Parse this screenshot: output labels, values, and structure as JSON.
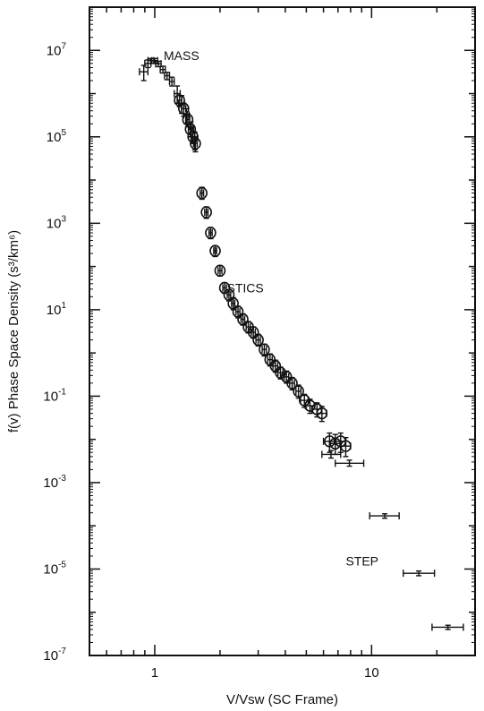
{
  "chart_data": {
    "type": "scatter",
    "xlabel": "V/Vsw (SC Frame)",
    "ylabel": "f(v) Phase Space Density (s³/km⁶)",
    "xscale": "log",
    "yscale": "log",
    "xlim": [
      0.5,
      30
    ],
    "ylim": [
      1e-07,
      100000000.0
    ],
    "grid": false,
    "x_ticks": [
      {
        "value": 1,
        "label": "1"
      },
      {
        "value": 10,
        "label": "10"
      }
    ],
    "y_ticks": [
      {
        "exp": 7,
        "base": "10",
        "sup": "7"
      },
      {
        "exp": 5,
        "base": "10",
        "sup": "5"
      },
      {
        "exp": 3,
        "base": "10",
        "sup": "3"
      },
      {
        "exp": 1,
        "base": "10",
        "sup": "1"
      },
      {
        "exp": -1,
        "base": "10",
        "sup": "-1"
      },
      {
        "exp": -3,
        "base": "10",
        "sup": "-3"
      },
      {
        "exp": -5,
        "base": "10",
        "sup": "-5"
      },
      {
        "exp": -7,
        "base": "10",
        "sup": "-7"
      }
    ],
    "annotations": [
      {
        "text": "MASS",
        "x": 1.1,
        "y": 6000000.0
      },
      {
        "text": "STICS",
        "x": 2.15,
        "y": 25
      },
      {
        "text": "STEP",
        "x": 7.6,
        "y": 1.2e-05
      }
    ],
    "series": [
      {
        "marker": "bar",
        "points": [
          {
            "x": 0.89,
            "y": 3200000.0,
            "xlo": 0.85,
            "xhi": 0.93,
            "ylo": 2000000.0,
            "yhi": 4500000.0
          },
          {
            "x": 0.93,
            "y": 5000000.0,
            "xlo": 0.9,
            "xhi": 0.96,
            "ylo": 4000000.0,
            "yhi": 6000000.0
          },
          {
            "x": 0.96,
            "y": 5800000.0,
            "xlo": 0.93,
            "xhi": 0.99,
            "ylo": 5000000.0,
            "yhi": 6500000.0
          },
          {
            "x": 1.0,
            "y": 5800000.0,
            "xlo": 0.97,
            "xhi": 1.03,
            "ylo": 5000000.0,
            "yhi": 6500000.0
          },
          {
            "x": 1.04,
            "y": 4900000.0,
            "xlo": 1.01,
            "xhi": 1.07,
            "ylo": 4200000.0,
            "yhi": 5600000.0
          },
          {
            "x": 1.09,
            "y": 3600000.0,
            "xlo": 1.06,
            "xhi": 1.12,
            "ylo": 3000000.0,
            "yhi": 4300000.0
          },
          {
            "x": 1.14,
            "y": 2600000.0,
            "xlo": 1.11,
            "xhi": 1.17,
            "ylo": 2100000.0,
            "yhi": 3100000.0
          },
          {
            "x": 1.2,
            "y": 1900000.0,
            "xlo": 1.17,
            "xhi": 1.23,
            "ylo": 1500000.0,
            "yhi": 2400000.0
          },
          {
            "x": 1.27,
            "y": 1000000.0,
            "xlo": 1.23,
            "xhi": 1.31,
            "ylo": 600000.0,
            "yhi": 1500000.0
          },
          {
            "x": 1.33,
            "y": 600000.0,
            "xlo": 1.29,
            "xhi": 1.37,
            "ylo": 350000.0,
            "yhi": 900000.0
          },
          {
            "x": 1.4,
            "y": 320000.0,
            "xlo": 1.36,
            "xhi": 1.44,
            "ylo": 200000.0,
            "yhi": 450000.0
          },
          {
            "x": 1.47,
            "y": 160000.0,
            "xlo": 1.43,
            "xhi": 1.51,
            "ylo": 100000.0,
            "yhi": 220000.0
          },
          {
            "x": 1.53,
            "y": 90000.0,
            "xlo": 1.49,
            "xhi": 1.57,
            "ylo": 50000.0,
            "yhi": 130000.0
          }
        ]
      },
      {
        "marker": "circle",
        "points": [
          {
            "x": 1.3,
            "y": 700000.0,
            "xlo": 1.27,
            "xhi": 1.33,
            "ylo": 500000.0,
            "yhi": 900000.0
          },
          {
            "x": 1.36,
            "y": 450000.0,
            "xlo": 1.33,
            "xhi": 1.39,
            "ylo": 300000.0,
            "yhi": 600000.0
          },
          {
            "x": 1.42,
            "y": 250000.0,
            "xlo": 1.39,
            "xhi": 1.45,
            "ylo": 170000.0,
            "yhi": 340000.0
          },
          {
            "x": 1.46,
            "y": 150000.0,
            "xlo": 1.43,
            "xhi": 1.49,
            "ylo": 100000.0,
            "yhi": 200000.0
          },
          {
            "x": 1.5,
            "y": 100000.0,
            "xlo": 1.47,
            "xhi": 1.53,
            "ylo": 70000.0,
            "yhi": 130000.0
          },
          {
            "x": 1.54,
            "y": 70000.0,
            "xlo": 1.51,
            "xhi": 1.57,
            "ylo": 45000.0,
            "yhi": 100000.0
          },
          {
            "x": 1.65,
            "y": 5000.0,
            "xlo": 1.62,
            "xhi": 1.68,
            "ylo": 3600.0,
            "yhi": 6800.0
          },
          {
            "x": 1.73,
            "y": 1800.0,
            "xlo": 1.7,
            "xhi": 1.76,
            "ylo": 1300.0,
            "yhi": 2400.0
          },
          {
            "x": 1.81,
            "y": 600.0,
            "xlo": 1.78,
            "xhi": 1.84,
            "ylo": 440.0,
            "yhi": 800.0
          },
          {
            "x": 1.9,
            "y": 230.0,
            "xlo": 1.87,
            "xhi": 1.93,
            "ylo": 170.0,
            "yhi": 300.0
          },
          {
            "x": 2.0,
            "y": 80.0,
            "xlo": 1.96,
            "xhi": 2.04,
            "ylo": 60.0,
            "yhi": 105.0
          },
          {
            "x": 2.1,
            "y": 32.0,
            "xlo": 2.06,
            "xhi": 2.14,
            "ylo": 24.0,
            "yhi": 42.0
          },
          {
            "x": 2.2,
            "y": 22.0,
            "xlo": 2.16,
            "xhi": 2.24,
            "ylo": 16.0,
            "yhi": 29.0
          },
          {
            "x": 2.3,
            "y": 14.0,
            "xlo": 2.26,
            "xhi": 2.34,
            "ylo": 10.0,
            "yhi": 19.0
          },
          {
            "x": 2.42,
            "y": 9.0,
            "xlo": 2.37,
            "xhi": 2.47,
            "ylo": 6.5,
            "yhi": 12
          },
          {
            "x": 2.55,
            "y": 6.0,
            "xlo": 2.5,
            "xhi": 2.6,
            "ylo": 4.4,
            "yhi": 8.0
          },
          {
            "x": 2.7,
            "y": 4.0,
            "xlo": 2.64,
            "xhi": 2.76,
            "ylo": 2.9,
            "yhi": 5.3
          },
          {
            "x": 2.85,
            "y": 3.0,
            "xlo": 2.79,
            "xhi": 2.91,
            "ylo": 2.2,
            "yhi": 4.0
          },
          {
            "x": 3.0,
            "y": 2.0,
            "xlo": 2.93,
            "xhi": 3.07,
            "ylo": 1.45,
            "yhi": 2.7
          },
          {
            "x": 3.2,
            "y": 1.2,
            "xlo": 3.13,
            "xhi": 3.27,
            "ylo": 0.85,
            "yhi": 1.6
          },
          {
            "x": 3.4,
            "y": 0.7,
            "xlo": 3.32,
            "xhi": 3.48,
            "ylo": 0.5,
            "yhi": 0.95
          },
          {
            "x": 3.6,
            "y": 0.5,
            "xlo": 3.51,
            "xhi": 3.69,
            "ylo": 0.36,
            "yhi": 0.68
          },
          {
            "x": 3.8,
            "y": 0.35,
            "xlo": 3.7,
            "xhi": 3.9,
            "ylo": 0.25,
            "yhi": 0.47
          },
          {
            "x": 4.05,
            "y": 0.28,
            "xlo": 3.95,
            "xhi": 4.15,
            "ylo": 0.2,
            "yhi": 0.38
          },
          {
            "x": 4.3,
            "y": 0.2,
            "xlo": 4.19,
            "xhi": 4.41,
            "ylo": 0.14,
            "yhi": 0.27
          },
          {
            "x": 4.6,
            "y": 0.13,
            "xlo": 4.48,
            "xhi": 4.72,
            "ylo": 0.09,
            "yhi": 0.18
          },
          {
            "x": 4.9,
            "y": 0.08,
            "xlo": 4.7,
            "xhi": 5.1,
            "ylo": 0.055,
            "yhi": 0.11
          },
          {
            "x": 5.2,
            "y": 0.06,
            "xlo": 4.95,
            "xhi": 5.45,
            "ylo": 0.04,
            "yhi": 0.085
          },
          {
            "x": 5.6,
            "y": 0.05,
            "xlo": 5.3,
            "xhi": 5.9,
            "ylo": 0.033,
            "yhi": 0.07
          },
          {
            "x": 5.9,
            "y": 0.04,
            "xlo": 5.6,
            "xhi": 6.2,
            "ylo": 0.026,
            "yhi": 0.058
          },
          {
            "x": 6.4,
            "y": 0.009,
            "xlo": 6.0,
            "xhi": 6.8,
            "ylo": 0.005,
            "yhi": 0.014
          },
          {
            "x": 6.8,
            "y": 0.008,
            "xlo": 6.4,
            "xhi": 7.2,
            "ylo": 0.0045,
            "yhi": 0.013
          },
          {
            "x": 7.2,
            "y": 0.009,
            "xlo": 6.8,
            "xhi": 7.6,
            "ylo": 0.005,
            "yhi": 0.014
          },
          {
            "x": 7.6,
            "y": 0.007,
            "xlo": 7.2,
            "xhi": 8.0,
            "ylo": 0.004,
            "yhi": 0.011
          }
        ]
      },
      {
        "marker": "bar",
        "points": [
          {
            "x": 6.5,
            "y": 0.0045,
            "xlo": 5.9,
            "xhi": 7.2,
            "ylo": 0.0037,
            "yhi": 0.0055
          },
          {
            "x": 7.9,
            "y": 0.0028,
            "xlo": 6.8,
            "xhi": 9.2,
            "ylo": 0.0024,
            "yhi": 0.0033
          },
          {
            "x": 11.5,
            "y": 0.00017,
            "xlo": 9.8,
            "xhi": 13.4,
            "ylo": 0.00015,
            "yhi": 0.00019
          },
          {
            "x": 16.5,
            "y": 8e-06,
            "xlo": 14.0,
            "xhi": 19.5,
            "ylo": 7e-06,
            "yhi": 9e-06
          },
          {
            "x": 22.5,
            "y": 4.5e-07,
            "xlo": 19.0,
            "xhi": 26.5,
            "ylo": 4e-07,
            "yhi": 5e-07
          }
        ]
      }
    ]
  }
}
